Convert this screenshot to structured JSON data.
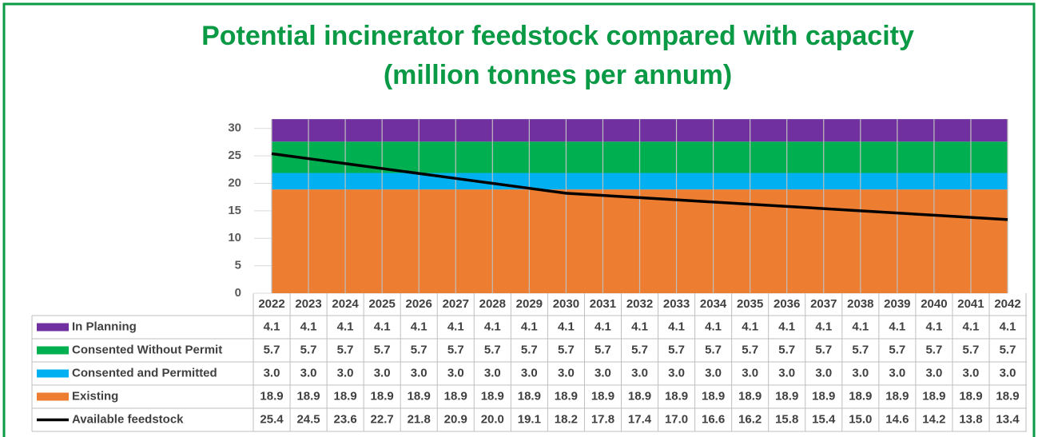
{
  "chart_data": {
    "type": "stacked-area-table",
    "title": "Potential incinerator feedstock compared with capacity",
    "subtitle": "(million tonnes per annum)",
    "categories": [
      "2022",
      "2023",
      "2024",
      "2025",
      "2026",
      "2027",
      "2028",
      "2029",
      "2030",
      "2031",
      "2032",
      "2033",
      "2034",
      "2035",
      "2036",
      "2037",
      "2038",
      "2039",
      "2040",
      "2041",
      "2042"
    ],
    "ylim": [
      0,
      32
    ],
    "yticks": [
      0,
      5,
      10,
      15,
      20,
      25,
      30
    ],
    "grid": true,
    "series": [
      {
        "name": "In Planning",
        "color": "#7030a0",
        "kind": "area",
        "values": [
          4.1,
          4.1,
          4.1,
          4.1,
          4.1,
          4.1,
          4.1,
          4.1,
          4.1,
          4.1,
          4.1,
          4.1,
          4.1,
          4.1,
          4.1,
          4.1,
          4.1,
          4.1,
          4.1,
          4.1,
          4.1
        ]
      },
      {
        "name": "Consented Without Permit",
        "color": "#00b050",
        "kind": "area",
        "values": [
          5.7,
          5.7,
          5.7,
          5.7,
          5.7,
          5.7,
          5.7,
          5.7,
          5.7,
          5.7,
          5.7,
          5.7,
          5.7,
          5.7,
          5.7,
          5.7,
          5.7,
          5.7,
          5.7,
          5.7,
          5.7
        ]
      },
      {
        "name": "Consented and Permitted",
        "color": "#00b0f0",
        "kind": "area",
        "values": [
          3,
          3,
          3,
          3,
          3,
          3,
          3,
          3,
          3,
          3,
          3,
          3,
          3,
          3,
          3,
          3,
          3,
          3,
          3,
          3,
          3
        ],
        "value_labels": [
          "3.0",
          "3.0",
          "3.0",
          "3.0",
          "3.0",
          "3.0",
          "3.0",
          "3.0",
          "3.0",
          "3.0",
          "3.0",
          "3.0",
          "3.0",
          "3.0",
          "3.0",
          "3.0",
          "3.0",
          "3.0",
          "3.0",
          "3.0",
          "3.0"
        ]
      },
      {
        "name": "Existing",
        "color": "#ed7d31",
        "kind": "area",
        "values": [
          18.9,
          18.9,
          18.9,
          18.9,
          18.9,
          18.9,
          18.9,
          18.9,
          18.9,
          18.9,
          18.9,
          18.9,
          18.9,
          18.9,
          18.9,
          18.9,
          18.9,
          18.9,
          18.9,
          18.9,
          18.9
        ]
      },
      {
        "name": "Available feedstock",
        "color": "#000000",
        "kind": "line",
        "values": [
          25.4,
          24.5,
          23.6,
          22.7,
          21.8,
          20.9,
          20,
          19.1,
          18.2,
          17.8,
          17.4,
          17,
          16.6,
          16.2,
          15.8,
          15.4,
          15,
          14.6,
          14.2,
          13.8,
          13.4
        ],
        "value_labels": [
          "25.4",
          "24.5",
          "23.6",
          "22.7",
          "21.8",
          "20.9",
          "20.0",
          "19.1",
          "18.2",
          "17.8",
          "17.4",
          "17.0",
          "16.6",
          "16.2",
          "15.8",
          "15.4",
          "15.0",
          "14.6",
          "14.2",
          "13.8",
          "13.4"
        ]
      }
    ]
  }
}
